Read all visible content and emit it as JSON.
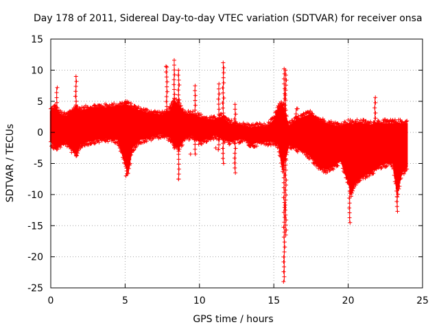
{
  "chart_data": {
    "type": "scatter",
    "title": "Day 178 of 2011, Sidereal Day-to-day VTEC variation (SDTVAR) for receiver onsa",
    "xlabel": "GPS time / hours",
    "ylabel": "SDTVAR / TECUs",
    "xlim": [
      0,
      25
    ],
    "ylim": [
      -25,
      15
    ],
    "grid": true,
    "marker": "+",
    "color": "#ff0000",
    "x_ticks": [
      "0",
      "5",
      "10",
      "15",
      "20",
      "25"
    ],
    "y_ticks": [
      "15",
      "10",
      "5",
      "0",
      "-5",
      "-10",
      "-15",
      "-20",
      "-25"
    ],
    "series": [
      {
        "name": "SDTVAR",
        "envelope": {
          "x": [
            0.0,
            0.3,
            0.6,
            1.0,
            1.5,
            1.7,
            2.0,
            2.5,
            3.0,
            3.5,
            4.0,
            4.5,
            5.0,
            5.2,
            5.5,
            6.0,
            6.5,
            7.0,
            7.5,
            8.0,
            8.3,
            8.6,
            9.0,
            9.5,
            10.0,
            10.5,
            11.0,
            11.5,
            12.0,
            12.5,
            13.0,
            13.5,
            14.0,
            14.5,
            15.0,
            15.3,
            15.6,
            16.0,
            16.5,
            17.0,
            17.5,
            18.0,
            18.5,
            19.0,
            19.5,
            20.0,
            20.2,
            20.5,
            21.0,
            21.5,
            22.0,
            22.5,
            23.0,
            23.3,
            23.6,
            24.0
          ],
          "lo": [
            -1.5,
            -2.5,
            -2.0,
            -1.5,
            -3.0,
            -3.5,
            -2.0,
            -1.5,
            -1.2,
            -1.0,
            -1.0,
            -1.2,
            -5.0,
            -6.5,
            -2.5,
            -1.2,
            -1.0,
            -0.5,
            -0.3,
            -0.8,
            -2.0,
            -2.5,
            -1.0,
            -0.5,
            -1.5,
            -1.0,
            -0.5,
            -0.8,
            -1.5,
            -1.2,
            -1.0,
            -2.0,
            -1.5,
            -1.5,
            -1.5,
            -2.0,
            -6.0,
            -2.0,
            -2.5,
            -3.0,
            -4.0,
            -5.5,
            -6.0,
            -5.5,
            -4.5,
            -8.0,
            -10.0,
            -8.0,
            -7.0,
            -6.5,
            -5.5,
            -5.0,
            -5.0,
            -10.0,
            -6.5,
            -5.5
          ],
          "hi": [
            3.5,
            4.0,
            3.0,
            2.5,
            3.5,
            4.0,
            3.5,
            3.8,
            4.0,
            4.0,
            4.1,
            4.2,
            4.5,
            4.4,
            4.0,
            3.5,
            3.2,
            3.0,
            2.8,
            3.5,
            5.0,
            4.5,
            3.0,
            3.0,
            2.5,
            2.0,
            2.0,
            2.5,
            1.5,
            1.2,
            1.0,
            0.8,
            1.0,
            0.8,
            2.0,
            4.0,
            4.5,
            1.0,
            2.0,
            2.5,
            3.0,
            2.0,
            1.5,
            1.2,
            1.0,
            1.5,
            1.2,
            1.5,
            1.5,
            1.2,
            1.5,
            1.5,
            1.5,
            1.5,
            1.5,
            1.5
          ]
        },
        "spikes": [
          {
            "x": 0.4,
            "hi": 7.2,
            "lo": -2.5
          },
          {
            "x": 1.7,
            "hi": 9.0,
            "lo": -3.8
          },
          {
            "x": 5.1,
            "hi": 5.0,
            "lo": -7.0
          },
          {
            "x": 8.3,
            "hi": 11.6,
            "lo": -2.5
          },
          {
            "x": 8.6,
            "hi": 10.0,
            "lo": -7.5
          },
          {
            "x": 9.7,
            "hi": 7.5,
            "lo": -3.5
          },
          {
            "x": 11.6,
            "hi": 11.2,
            "lo": -5.0
          },
          {
            "x": 11.3,
            "hi": 7.8,
            "lo": -2.8
          },
          {
            "x": 12.4,
            "hi": 4.5,
            "lo": -6.5
          },
          {
            "x": 15.7,
            "hi": 10.2,
            "lo": -24.0
          },
          {
            "x": 15.8,
            "hi": 10.0,
            "lo": -16.5
          },
          {
            "x": 16.5,
            "hi": 3.8,
            "lo": -2.0
          },
          {
            "x": 20.1,
            "hi": 2.0,
            "lo": -14.5
          },
          {
            "x": 21.8,
            "hi": 5.6,
            "lo": -6.0
          },
          {
            "x": 23.3,
            "hi": 1.5,
            "lo": -12.7
          },
          {
            "x": 7.8,
            "hi": 10.5,
            "lo": 1.0
          }
        ]
      }
    ]
  }
}
